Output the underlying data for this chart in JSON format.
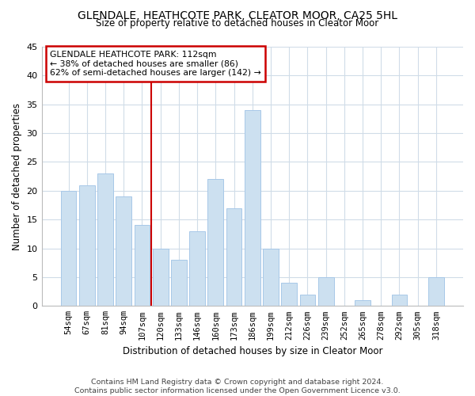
{
  "title": "GLENDALE, HEATHCOTE PARK, CLEATOR MOOR, CA25 5HL",
  "subtitle": "Size of property relative to detached houses in Cleator Moor",
  "xlabel": "Distribution of detached houses by size in Cleator Moor",
  "ylabel": "Number of detached properties",
  "bar_labels": [
    "54sqm",
    "67sqm",
    "81sqm",
    "94sqm",
    "107sqm",
    "120sqm",
    "133sqm",
    "146sqm",
    "160sqm",
    "173sqm",
    "186sqm",
    "199sqm",
    "212sqm",
    "226sqm",
    "239sqm",
    "252sqm",
    "265sqm",
    "278sqm",
    "292sqm",
    "305sqm",
    "318sqm"
  ],
  "bar_values": [
    20,
    21,
    23,
    19,
    14,
    10,
    8,
    13,
    22,
    17,
    34,
    10,
    4,
    2,
    5,
    0,
    1,
    0,
    2,
    0,
    5
  ],
  "bar_color": "#cce0f0",
  "bar_edge_color": "#a8c8e8",
  "vline_x": 4.5,
  "vline_color": "#cc0000",
  "annotation_title": "GLENDALE HEATHCOTE PARK: 112sqm",
  "annotation_line1": "← 38% of detached houses are smaller (86)",
  "annotation_line2": "62% of semi-detached houses are larger (142) →",
  "annotation_box_color": "#ffffff",
  "annotation_box_edge_color": "#cc0000",
  "ylim": [
    0,
    45
  ],
  "yticks": [
    0,
    5,
    10,
    15,
    20,
    25,
    30,
    35,
    40,
    45
  ],
  "footer_line1": "Contains HM Land Registry data © Crown copyright and database right 2024.",
  "footer_line2": "Contains public sector information licensed under the Open Government Licence v3.0.",
  "background_color": "#ffffff",
  "grid_color": "#d0dce8"
}
